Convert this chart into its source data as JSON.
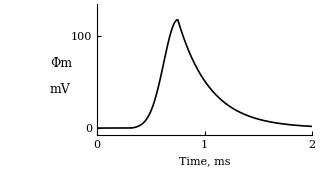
{
  "title": "",
  "xlabel": "Time, ms",
  "ylabel_line1": "Φm",
  "ylabel_line2": "mV",
  "xlim": [
    0,
    2
  ],
  "ylim": [
    -8,
    135
  ],
  "xticks": [
    0,
    1,
    2
  ],
  "yticks": [
    0,
    100
  ],
  "peak_time": 0.75,
  "peak_value": 118,
  "rise_sigma": 0.13,
  "decay_tau": 0.3,
  "line_color": "#000000",
  "line_width": 1.2,
  "bg_color": "#ffffff",
  "fig_width": 3.2,
  "fig_height": 1.7,
  "dpi": 100
}
